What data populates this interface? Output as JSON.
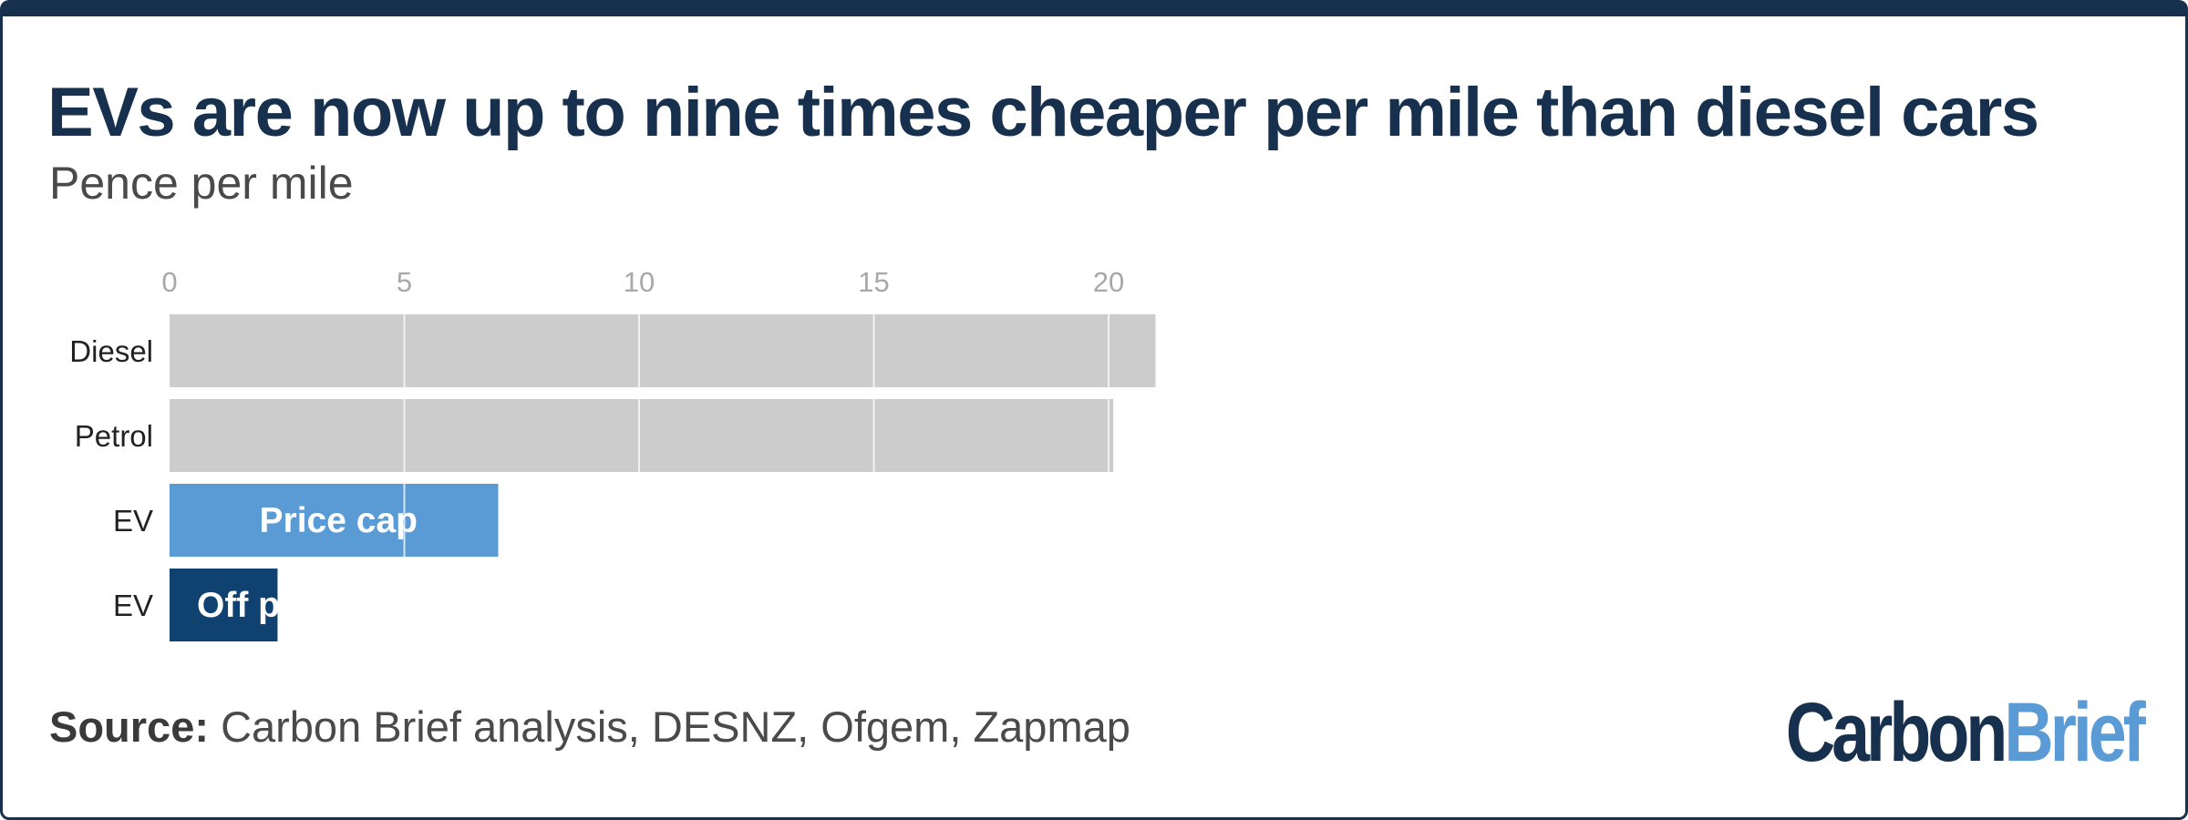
{
  "title": "EVs are now up to nine times cheaper per mile than diesel cars",
  "subtitle": "Pence per mile",
  "source": {
    "label": "Source:",
    "text": "Carbon Brief analysis, DESNZ, Ofgem, Zapmap"
  },
  "logo": {
    "part1": "Carbon",
    "part2": "Brief"
  },
  "colors": {
    "grey": "#cccccc",
    "light_blue": "#5b9bd5",
    "dark_blue": "#0f4270",
    "navy": "#16304d"
  },
  "chart_data": {
    "type": "bar",
    "orientation": "horizontal",
    "categories": [
      "Diesel",
      "Petrol",
      "EV",
      "EV"
    ],
    "values": [
      21,
      20.1,
      7,
      2.3
    ],
    "bar_labels": [
      "",
      "",
      "Price cap",
      "Off peak"
    ],
    "bar_colors": [
      "#cccccc",
      "#cccccc",
      "#5b9bd5",
      "#0f4270"
    ],
    "xticks": [
      0,
      5,
      10,
      15,
      20
    ],
    "xlim": [
      0,
      21
    ],
    "title": "EVs are now up to nine times cheaper per mile than diesel cars",
    "xlabel": "",
    "ylabel": "",
    "grid": true,
    "legend": "none"
  }
}
